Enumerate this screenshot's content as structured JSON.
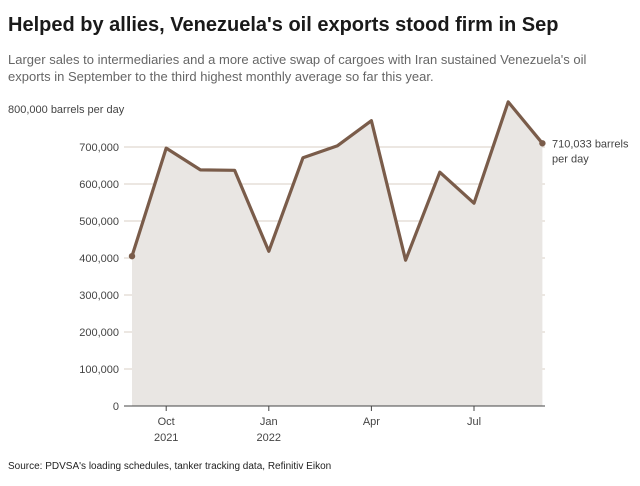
{
  "header": {
    "title": "Helped by allies, Venezuela's oil exports stood firm in Sep",
    "subtitle": "Larger sales to intermediaries and a more active swap of cargoes with Iran sustained Venezuela's oil exports in September to the third highest monthly average so far this year."
  },
  "footer": {
    "source": "Source: PDVSA's loading schedules, tanker tracking data, Refinitiv Eikon"
  },
  "chart_data": {
    "type": "area",
    "title": "Helped by allies, Venezuela's oil exports stood firm in Sep",
    "subtitle": "Larger sales to intermediaries and a more active swap of cargoes with Iran sustained Venezuela's oil exports in September to the third highest monthly average so far this year.",
    "ylabel": "",
    "yunit_label": "800,000 barrels per day",
    "x": [
      "2021-09",
      "2021-10",
      "2021-11",
      "2021-12",
      "2022-01",
      "2022-02",
      "2022-03",
      "2022-04",
      "2022-05",
      "2022-06",
      "2022-07",
      "2022-08",
      "2022-09"
    ],
    "values": [
      405000,
      697000,
      638000,
      637000,
      418000,
      671000,
      703000,
      771000,
      394000,
      632000,
      548000,
      822000,
      710033
    ],
    "ylim": [
      0,
      800000
    ],
    "yticks": [
      0,
      100000,
      200000,
      300000,
      400000,
      500000,
      600000,
      700000
    ],
    "ytick_labels": [
      "0",
      "100,000",
      "200,000",
      "300,000",
      "400,000",
      "500,000",
      "600,000",
      "700,000"
    ],
    "xticks": [
      {
        "x": "2021-10",
        "label": "Oct",
        "sublabel": "2021"
      },
      {
        "x": "2022-01",
        "label": "Jan",
        "sublabel": "2022"
      },
      {
        "x": "2022-04",
        "label": "Apr",
        "sublabel": ""
      },
      {
        "x": "2022-07",
        "label": "Jul",
        "sublabel": ""
      }
    ],
    "end_label": [
      "710,033 barrels",
      "per day"
    ],
    "grid": true,
    "colors": {
      "line": "#7a5c4a",
      "fill": "#e9e6e3",
      "grid": "#d9cfc4",
      "axis": "#444444"
    }
  }
}
